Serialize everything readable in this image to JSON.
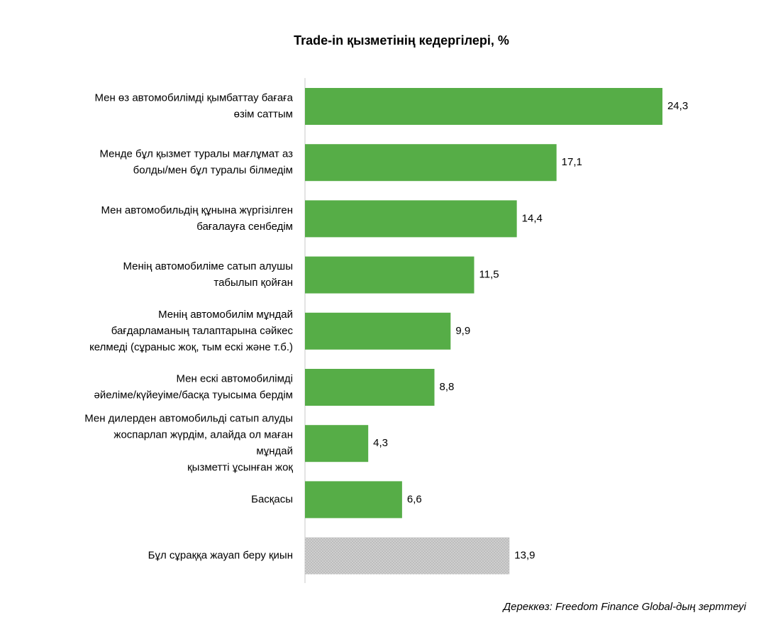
{
  "chart_data": {
    "type": "barh",
    "title": "Trade-in қызметінің кедергілері, %",
    "source": "Дереккөз: Freedom Finance Global-дың зерттеуі",
    "categories": [
      "Мен өз автомобилімді қымбаттау бағаға\nөзім саттым",
      "Менде бұл қызмет туралы мағлұмат аз\nболды/мен бұл туралы білмедім",
      "Мен автомобильдің құнына жүргізілген\nбағалауға сенбедім",
      "Менің автомобиліме сатып алушы\nтабылып қойған",
      "Менің автомобилім мұндай\nбағдарламаның талаптарына сәйкес\nкелмеді (сұраныс жоқ, тым ескі және т.б.)",
      "Мен ескі автомобилімді\nәйеліме/күйеуіме/басқа туысыма бердім",
      "Мен дилерден автомобильді сатып алуды\nжоспарлап жүрдім, алайда ол маған\nмұндай\nқызметті ұсынған жоқ",
      "Басқасы",
      "Бұл сұраққа жауап беру қиын"
    ],
    "values": [
      24.3,
      17.1,
      14.4,
      11.5,
      9.9,
      8.8,
      4.3,
      6.6,
      13.9
    ],
    "value_labels": [
      "24,3",
      "17,1",
      "14,4",
      "11,5",
      "9,9",
      "8,8",
      "4,3",
      "6,6",
      "13,9"
    ],
    "colors": [
      "#56ad47",
      "#56ad47",
      "#56ad47",
      "#56ad47",
      "#56ad47",
      "#56ad47",
      "#56ad47",
      "#56ad47",
      "#bdbdbd"
    ],
    "xlim": [
      0,
      25
    ]
  }
}
